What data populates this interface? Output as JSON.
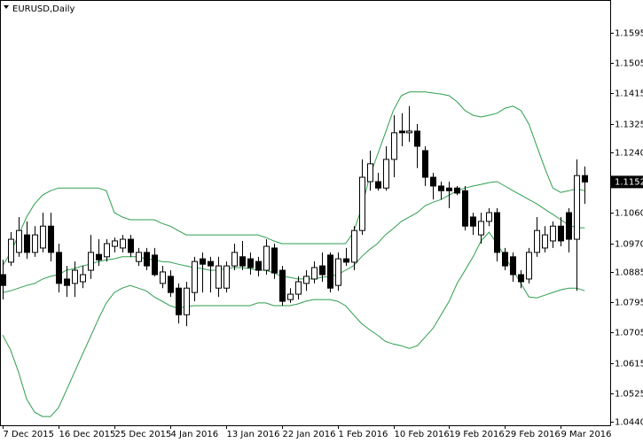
{
  "chart_data": {
    "type": "candlestick",
    "title": "EURUSD,Daily",
    "categories": [
      "7 Dec 2015",
      null,
      null,
      null,
      null,
      null,
      null,
      "16 Dec 2015",
      null,
      null,
      null,
      null,
      null,
      null,
      "25 Dec 2015",
      null,
      null,
      null,
      null,
      null,
      null,
      "4 Jan 2016",
      null,
      null,
      null,
      null,
      null,
      null,
      "13 Jan 2016",
      null,
      null,
      null,
      null,
      null,
      null,
      "22 Jan 2016",
      null,
      null,
      null,
      null,
      null,
      null,
      "1 Feb 2016",
      null,
      null,
      null,
      null,
      null,
      null,
      "10 Feb 2016",
      null,
      null,
      null,
      null,
      null,
      null,
      "19 Feb 2016",
      null,
      null,
      null,
      null,
      null,
      null,
      "29 Feb 2016",
      null,
      null,
      null,
      null,
      null,
      null,
      "9 Mar 2016",
      null,
      null,
      null
    ],
    "candles": {
      "up_color": "#ffffff",
      "down_color": "#000000",
      "outline": "#000000",
      "open": [
        1.0877,
        1.0914,
        1.0943,
        1.0995,
        1.0943,
        1.0956,
        1.1021,
        1.0943,
        1.0864,
        1.0851,
        1.0856,
        1.089,
        1.0937,
        1.093,
        1.0961,
        1.0956,
        1.0982,
        1.0916,
        1.0943,
        1.0935,
        1.0851,
        1.0872,
        1.0837,
        1.0758,
        1.0824,
        1.0924,
        1.0916,
        1.0837,
        1.0837,
        1.0903,
        1.093,
        1.0924,
        1.0916,
        1.089,
        1.0956,
        1.089,
        1.0803,
        1.0819,
        1.0851,
        1.0864,
        1.0903,
        1.0935,
        1.0845,
        1.0924,
        1.0914,
        1.1008,
        1.1153,
        1.1153,
        1.1134,
        1.1219,
        1.1303,
        1.1298,
        1.1303,
        1.1245,
        1.1166,
        1.114,
        1.1134,
        1.1134,
        1.1126,
        1.1048,
        1.0995,
        1.1035,
        1.1061,
        1.0943,
        1.093,
        1.0877,
        1.0864,
        1.0943,
        1.0956,
        1.0977,
        1.1021,
        1.1061,
        1.0982,
        1.1171
      ],
      "high": [
        1.0921,
        1.1003,
        1.1048,
        1.1035,
        1.1021,
        1.1061,
        1.1061,
        1.0969,
        1.0903,
        1.0916,
        1.0903,
        1.0995,
        1.0982,
        1.0982,
        1.0987,
        1.0995,
        1.0995,
        1.0956,
        1.0956,
        1.0956,
        1.0903,
        1.089,
        1.0851,
        1.0856,
        1.093,
        1.0943,
        1.093,
        1.093,
        1.0916,
        1.0969,
        1.0977,
        1.0943,
        1.093,
        1.0982,
        1.0969,
        1.0903,
        1.0837,
        1.0872,
        1.089,
        1.0916,
        1.0943,
        1.0943,
        1.0943,
        1.0956,
        1.1021,
        1.1219,
        1.1245,
        1.1179,
        1.1258,
        1.135,
        1.1356,
        1.1377,
        1.1324,
        1.1258,
        1.1179,
        1.1153,
        1.1153,
        1.114,
        1.114,
        1.1061,
        1.1061,
        1.1074,
        1.1074,
        1.0956,
        1.0943,
        1.089,
        1.0956,
        1.1048,
        1.1021,
        1.1035,
        1.1048,
        1.1074,
        1.1219,
        1.1198
      ],
      "low": [
        1.0803,
        1.0903,
        1.093,
        1.0924,
        1.093,
        1.0943,
        1.0916,
        1.0824,
        1.0811,
        1.0811,
        1.0837,
        1.0864,
        1.0903,
        1.0916,
        1.0943,
        1.0943,
        1.093,
        1.0903,
        1.089,
        1.0872,
        1.0837,
        1.0811,
        1.0732,
        1.0724,
        1.0798,
        1.0824,
        1.0824,
        1.0811,
        1.0824,
        1.089,
        1.089,
        1.0877,
        1.0872,
        1.0877,
        1.0864,
        1.0785,
        1.0793,
        1.0803,
        1.0829,
        1.0851,
        1.0856,
        1.0824,
        1.0829,
        1.0903,
        1.089,
        1.0995,
        1.1126,
        1.1126,
        1.1126,
        1.1166,
        1.1258,
        1.1271,
        1.1193,
        1.114,
        1.11,
        1.11,
        1.1074,
        1.1113,
        1.1008,
        1.0995,
        1.0969,
        1.1021,
        1.0916,
        1.089,
        1.0856,
        1.0837,
        1.0851,
        1.093,
        1.0943,
        1.0956,
        1.0961,
        1.0943,
        1.0829,
        1.1087
      ],
      "close": [
        1.0845,
        1.0982,
        1.1008,
        1.0943,
        1.0995,
        1.1021,
        1.0943,
        1.0851,
        1.0845,
        1.089,
        1.0877,
        1.0943,
        1.0921,
        1.0969,
        1.0977,
        1.0982,
        1.0943,
        1.0943,
        1.0903,
        1.0877,
        1.0885,
        1.0824,
        1.0758,
        1.0837,
        1.0916,
        1.0908,
        1.0903,
        1.0903,
        1.0903,
        1.0943,
        1.0903,
        1.0898,
        1.089,
        1.0961,
        1.0882,
        1.0798,
        1.0819,
        1.0856,
        1.0872,
        1.0898,
        1.0877,
        1.0837,
        1.0924,
        1.0914,
        1.1008,
        1.1166,
        1.1206,
        1.1134,
        1.1219,
        1.1298,
        1.1298,
        1.1303,
        1.1258,
        1.1166,
        1.114,
        1.1126,
        1.1126,
        1.1119,
        1.1021,
        1.1021,
        1.1035,
        1.1061,
        1.0943,
        1.0903,
        1.0877,
        1.0856,
        1.0943,
        1.1008,
        1.0995,
        1.1021,
        1.0977,
        1.0982,
        1.1171,
        1.1152
      ]
    },
    "bands": [
      {
        "color": "#2e9e4e",
        "values": [
          1.0903,
          1.0943,
          1.0995,
          1.1048,
          1.1087,
          1.1113,
          1.1126,
          1.1134,
          1.1134,
          1.1134,
          1.1134,
          1.1134,
          1.1134,
          1.1126,
          1.1061,
          1.1048,
          1.104,
          1.104,
          1.104,
          1.104,
          1.1029,
          1.1021,
          1.1008,
          1.0995,
          1.0995,
          1.0995,
          1.0995,
          1.0995,
          1.0995,
          1.0995,
          1.0995,
          1.0995,
          1.0995,
          1.0987,
          1.0977,
          1.0969,
          1.0969,
          1.0969,
          1.0969,
          1.0969,
          1.0969,
          1.0969,
          1.0969,
          1.0969,
          1.1003,
          1.1074,
          1.1166,
          1.1232,
          1.1298,
          1.1364,
          1.1408,
          1.1419,
          1.1419,
          1.1419,
          1.1416,
          1.1413,
          1.1408,
          1.139,
          1.1364,
          1.135,
          1.1345,
          1.135,
          1.1356,
          1.1371,
          1.1377,
          1.1364,
          1.1324,
          1.1258,
          1.1193,
          1.1134,
          1.1121,
          1.1126,
          1.1132,
          1.1126
        ]
      },
      {
        "color": "#2e9e4e",
        "values": [
          1.0824,
          1.0829,
          1.0837,
          1.0845,
          1.0851,
          1.0864,
          1.0872,
          1.0877,
          1.089,
          1.0895,
          1.0903,
          1.0908,
          1.0916,
          1.0921,
          1.0924,
          1.093,
          1.093,
          1.093,
          1.0924,
          1.0921,
          1.0916,
          1.0914,
          1.0908,
          1.0903,
          1.0898,
          1.0895,
          1.089,
          1.089,
          1.0895,
          1.0898,
          1.0898,
          1.0895,
          1.089,
          1.089,
          1.0882,
          1.0872,
          1.0869,
          1.0864,
          1.0864,
          1.0864,
          1.0869,
          1.0872,
          1.0877,
          1.089,
          1.0903,
          1.093,
          1.0951,
          1.0969,
          1.0995,
          1.1014,
          1.1035,
          1.1048,
          1.1061,
          1.1082,
          1.1092,
          1.11,
          1.1113,
          1.1126,
          1.1134,
          1.114,
          1.1145,
          1.115,
          1.1153,
          1.114,
          1.1126,
          1.1113,
          1.11,
          1.1087,
          1.1071,
          1.1056,
          1.104,
          1.1024,
          1.1016,
          1.1016
        ]
      },
      {
        "color": "#2e9e4e",
        "values": [
          1.0698,
          1.0653,
          1.0587,
          1.0508,
          1.0469,
          1.0456,
          1.0456,
          1.0482,
          1.0534,
          1.0587,
          1.064,
          1.0692,
          1.0745,
          1.0793,
          1.0824,
          1.0837,
          1.0845,
          1.0837,
          1.0829,
          1.0811,
          1.0798,
          1.0785,
          1.0777,
          1.0782,
          1.0785,
          1.0785,
          1.0785,
          1.0785,
          1.0785,
          1.0785,
          1.0785,
          1.0785,
          1.0793,
          1.0793,
          1.0785,
          1.0785,
          1.0785,
          1.079,
          1.0798,
          1.0803,
          1.0803,
          1.0803,
          1.0798,
          1.0785,
          1.0758,
          1.0732,
          1.0714,
          1.0698,
          1.0679,
          1.0671,
          1.0666,
          1.0658,
          1.0666,
          1.0692,
          1.0719,
          1.0758,
          1.0798,
          1.0851,
          1.089,
          1.093,
          1.0977,
          1.1003,
          1.0969,
          1.093,
          1.089,
          1.0851,
          1.0811,
          1.0808,
          1.0816,
          1.0824,
          1.0832,
          1.0837,
          1.0837,
          1.0829
        ]
      }
    ],
    "last_price": 1.1152,
    "ylim": [
      1.043,
      1.1692
    ],
    "yticks": [
      1.1595,
      1.1505,
      1.1415,
      1.1325,
      {
        "value": 1.124,
        "label": "1.1240"
      },
      {
        "value": 1.106,
        "label": "1.1060"
      },
      {
        "value": 1.097,
        "label": "1.0970"
      },
      1.0885,
      1.0795,
      1.0705,
      1.0615,
      1.0525,
      {
        "value": 1.044,
        "label": "1.0440"
      }
    ]
  }
}
